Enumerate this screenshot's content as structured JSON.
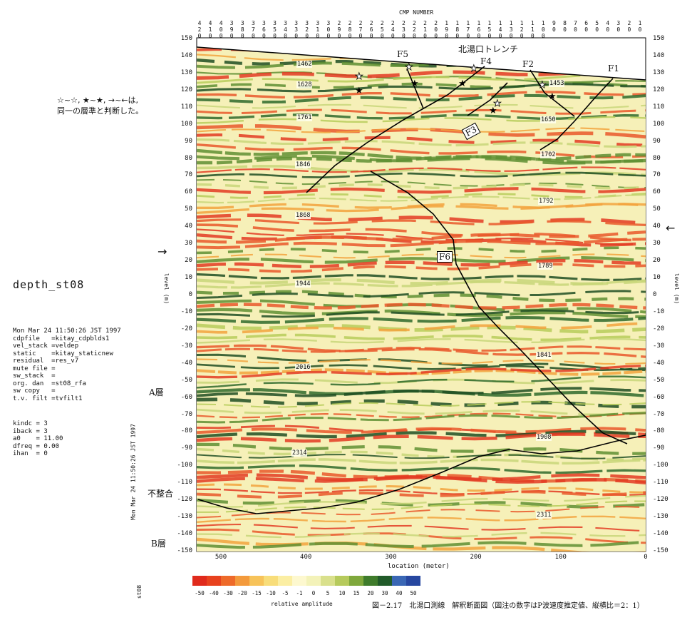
{
  "header": {
    "cmp_title": "CMP NUMBER",
    "cmp_numbers": [
      "420",
      "410",
      "400",
      "390",
      "380",
      "370",
      "360",
      "350",
      "340",
      "330",
      "320",
      "310",
      "300",
      "290",
      "280",
      "270",
      "260",
      "250",
      "240",
      "230",
      "220",
      "210",
      "200",
      "190",
      "180",
      "170",
      "160",
      "150",
      "140",
      "130",
      "120",
      "110",
      "100",
      "90",
      "80",
      "70",
      "60",
      "50",
      "40",
      "30",
      "20",
      "10"
    ]
  },
  "section": {
    "trench_label": "北湯口トレンチ",
    "fault_labels": [
      "F5",
      "F4",
      "F2",
      "F1",
      "F3",
      "F6"
    ],
    "velocity_labels": [
      "1462",
      "1628",
      "1761",
      "1846",
      "1868",
      "1944",
      "2016",
      "2314",
      "1453",
      "1650",
      "1702",
      "1792",
      "1789",
      "1841",
      "1908",
      "2311"
    ],
    "note_text_line1": "☆~☆, ★~★, →~←は,",
    "note_text_line2": "同一の層準と判断した。",
    "left_arrow": "→",
    "right_arrow": "←",
    "layer_a": "A層",
    "layer_b": "B層",
    "unconformity": "不整合"
  },
  "axes": {
    "y_label": "level (m)",
    "y_ticks": [
      "150",
      "140",
      "130",
      "120",
      "110",
      "100",
      "90",
      "80",
      "70",
      "60",
      "50",
      "40",
      "30",
      "20",
      "10",
      "0",
      "-10",
      "-20",
      "-30",
      "-40",
      "-50",
      "-60",
      "-70",
      "-80",
      "-90",
      "-100",
      "-110",
      "-120",
      "-130",
      "-140",
      "-150"
    ],
    "x_label": "location (meter)",
    "x_ticks": [
      "500",
      "400",
      "300",
      "200",
      "100",
      "0"
    ]
  },
  "side_panel": {
    "title": "depth_st08",
    "params": [
      "Mon Mar 24 11:50:26 JST 1997",
      "cdpfile   =kitay_cdpblds1",
      "vel_stack =veldep",
      "static    =kitay_staticnew",
      "residual  =res_v7",
      "mute file =",
      "sw_stack  =",
      "org. dan  =st08_rfa",
      "sw copy   =",
      "t.v. filt =tvfilt1"
    ],
    "params2": [
      "kindc = 3",
      "iback = 3",
      "a0    = 11.00",
      "dfreq = 0.00",
      "ihan  = 0"
    ],
    "rotated_stamp": "Mon Mar 24 11:50:26 JST 1997",
    "bottom_code": "st08"
  },
  "colorbar": {
    "labels": [
      "-50",
      "-40",
      "-30",
      "-20",
      "-15",
      "-10",
      "-5",
      "-1",
      "0",
      "5",
      "10",
      "15",
      "20",
      "30",
      "40",
      "50"
    ],
    "title": "relative amplitude",
    "colors": [
      "#e02a1c",
      "#e8421e",
      "#ee6a2a",
      "#f39a3c",
      "#f7c35a",
      "#f8dd7a",
      "#fbeea3",
      "#fdf8cf",
      "#f3f2b9",
      "#d9e08c",
      "#b6ca5c",
      "#7fa83c",
      "#3f7c2c",
      "#215b2a",
      "#3a67b5",
      "#2747a0"
    ]
  },
  "caption": "図－2.17　北湯口測線　解釈断面図（図注の数字はP波速度推定値、縦横比＝2：1）"
}
